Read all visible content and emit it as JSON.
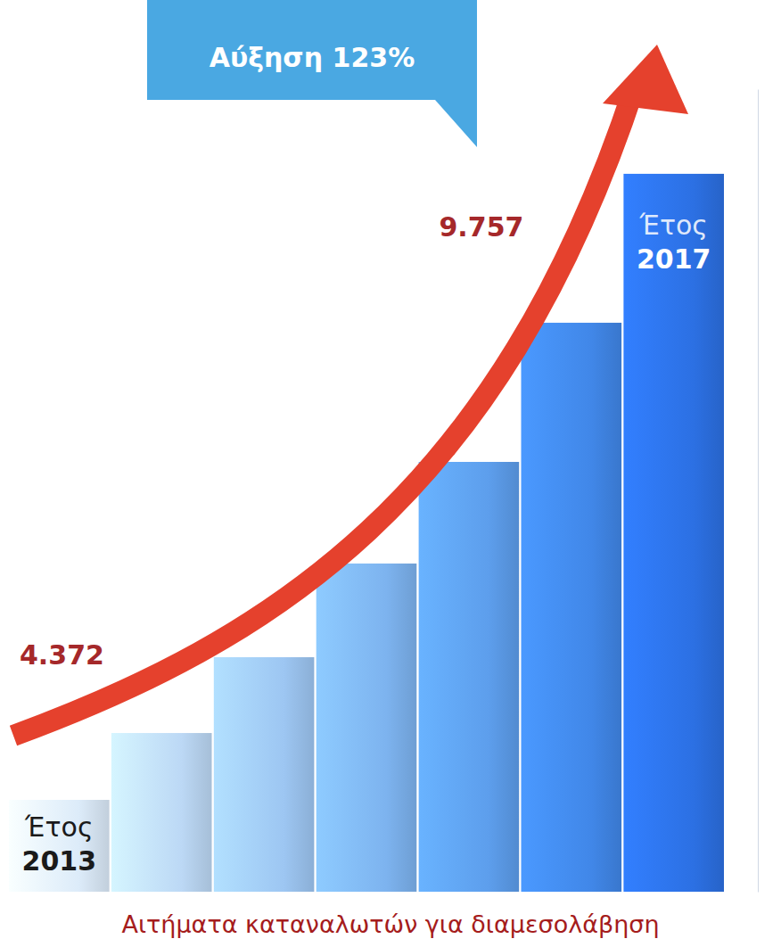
{
  "chart_data": {
    "type": "bar",
    "title": "Αιτήματα καταναλωτών για διαμεσολάβηση",
    "categories": [
      "Έτος 2013",
      null,
      null,
      null,
      null,
      null,
      "Έτος 2017"
    ],
    "values": [
      4372,
      4947,
      5599,
      6405,
      7279,
      8476,
      9757
    ],
    "value_labels": [
      "4.372",
      null,
      null,
      null,
      null,
      null,
      "9.757"
    ],
    "data_labels": true,
    "colors": [
      "#dcebf9",
      "#bcd8f5",
      "#9dc6f2",
      "#7db3ef",
      "#5d9eec",
      "#4187e8",
      "#2c70e3"
    ],
    "ylim": [
      3582,
      10485
    ],
    "yticks": [],
    "tick_labels": "x",
    "grid": false,
    "annotations": [
      {
        "text": "Αύξηση 123%"
      }
    ]
  }
}
